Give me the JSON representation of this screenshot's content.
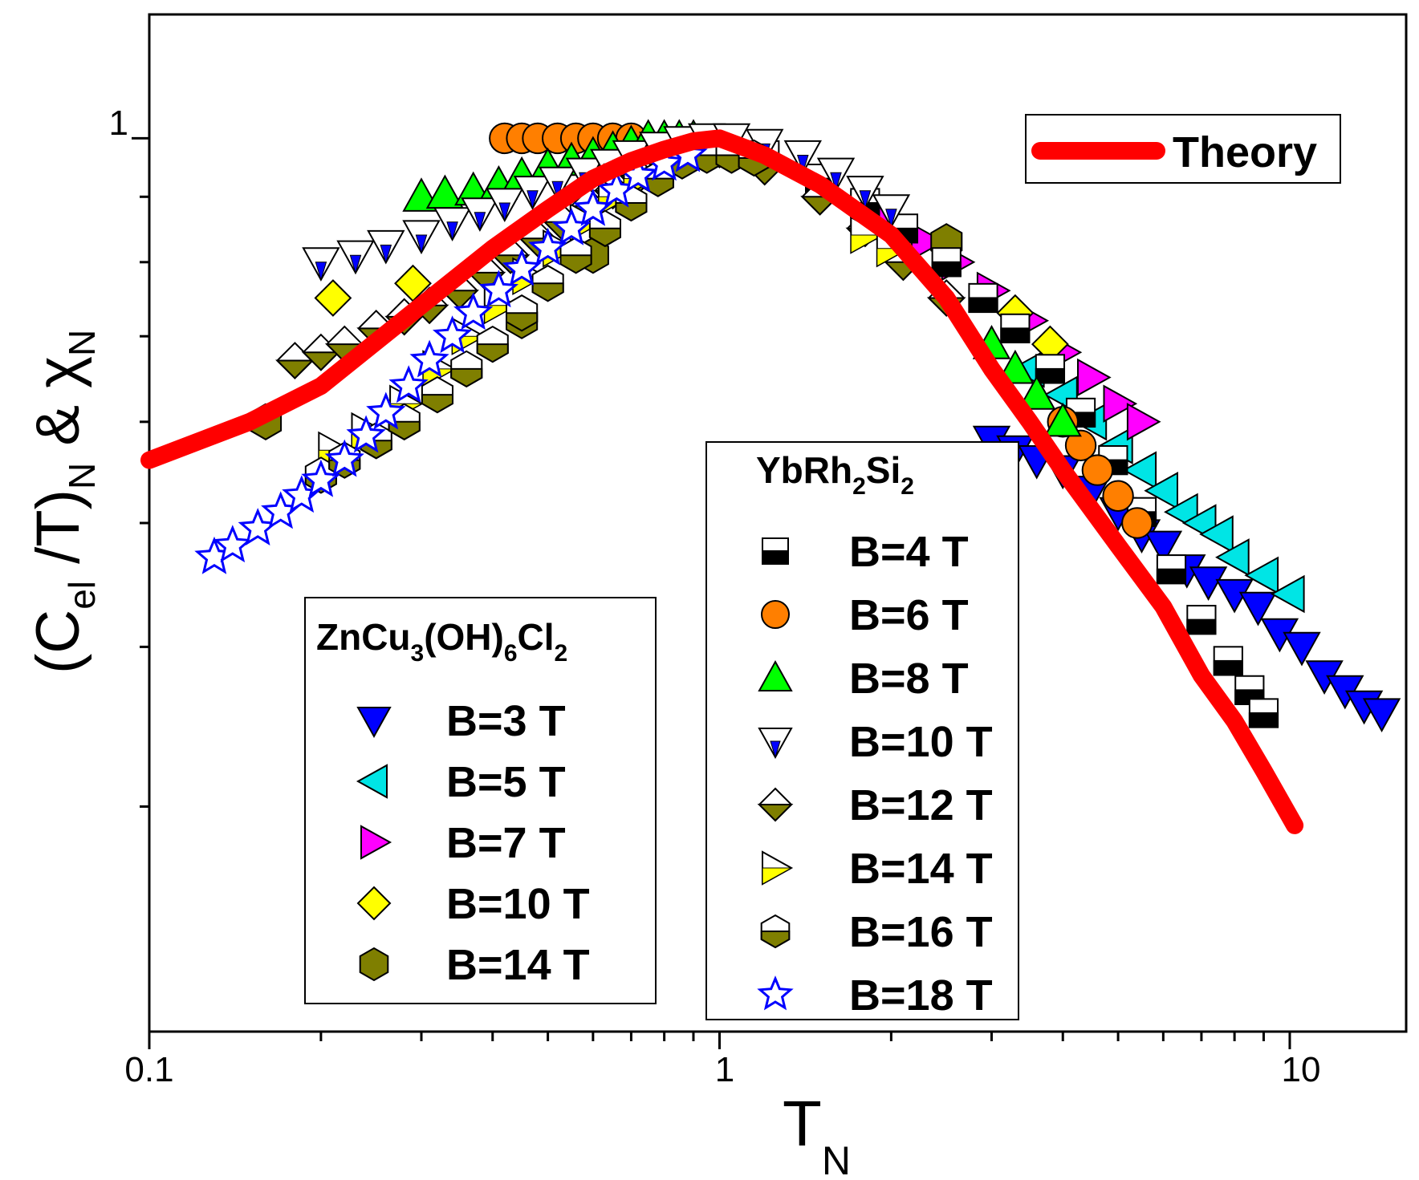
{
  "chart_data": {
    "type": "scatter",
    "xscale": "log",
    "yscale": "log",
    "xlim": [
      0.1,
      16
    ],
    "ylim": [
      0.2,
      1.25
    ],
    "xlabel": {
      "main": "T",
      "sub": "N"
    },
    "ylabel": {
      "open": "(C",
      "sub1": "el",
      "mid": " /T)",
      "sub2": "N",
      "amp": " & χ",
      "sub3": "N"
    },
    "x_ticks": [
      {
        "value": 0.1,
        "label": "0.1"
      },
      {
        "value": 1,
        "label": "1"
      },
      {
        "value": 10,
        "label": "10"
      }
    ],
    "y_ticks_labeled": [
      {
        "value": 1,
        "label": "1"
      }
    ],
    "y_ticks_unlabeled": [
      0.3,
      0.4,
      0.5,
      0.6,
      0.7,
      0.8,
      0.9
    ],
    "theory": {
      "name": "Theory",
      "color": "#ff0000",
      "x": [
        0.1,
        0.15,
        0.2,
        0.3,
        0.4,
        0.5,
        0.6,
        0.7,
        0.8,
        0.9,
        1.0,
        1.2,
        1.5,
        2.0,
        2.5,
        3.0,
        3.5,
        4.0,
        5.0,
        6.0,
        7.0,
        8.0,
        9.0,
        10.2
      ],
      "y": [
        0.56,
        0.6,
        0.64,
        0.74,
        0.82,
        0.88,
        0.93,
        0.96,
        0.98,
        0.995,
        1.0,
        0.97,
        0.92,
        0.84,
        0.75,
        0.66,
        0.6,
        0.55,
        0.48,
        0.43,
        0.38,
        0.35,
        0.32,
        0.29
      ]
    },
    "legend_zn": {
      "title_parts": [
        {
          "text": "ZnCu",
          "sub": false
        },
        {
          "text": "3",
          "sub": true
        },
        {
          "text": "(OH)",
          "sub": false
        },
        {
          "text": "6",
          "sub": true
        },
        {
          "text": "Cl",
          "sub": false
        },
        {
          "text": "2",
          "sub": true
        }
      ]
    },
    "legend_yb": {
      "title_parts": [
        {
          "text": "YbRh",
          "sub": false
        },
        {
          "text": "2",
          "sub": true
        },
        {
          "text": "Si",
          "sub": false
        },
        {
          "text": "2",
          "sub": true
        }
      ]
    },
    "series": [
      {
        "group": "zn",
        "name": "B=3 T",
        "marker": "tri-down",
        "fill": "#0000ff",
        "x": [
          3.0,
          3.3,
          3.6,
          4.0,
          4.5,
          5.0,
          5.5,
          6.0,
          6.6,
          7.2,
          8.0,
          8.8,
          9.6,
          10.5,
          11.5,
          12.5,
          13.5,
          14.5
        ],
        "y": [
          0.58,
          0.57,
          0.56,
          0.55,
          0.53,
          0.51,
          0.49,
          0.48,
          0.46,
          0.45,
          0.44,
          0.43,
          0.41,
          0.4,
          0.38,
          0.37,
          0.36,
          0.355
        ]
      },
      {
        "group": "zn",
        "name": "B=5 T",
        "marker": "tri-left",
        "fill": "#00e5e5",
        "x": [
          3.5,
          4.0,
          4.5,
          5.0,
          5.5,
          6.0,
          6.5,
          7.0,
          7.5,
          8.0,
          9.0,
          10.0
        ],
        "y": [
          0.66,
          0.63,
          0.6,
          0.575,
          0.55,
          0.53,
          0.51,
          0.5,
          0.49,
          0.47,
          0.455,
          0.44
        ]
      },
      {
        "group": "zn",
        "name": "B=7 T",
        "marker": "tri-right",
        "fill": "#ff00ff",
        "x": [
          1.8,
          2.0,
          2.3,
          2.6,
          3.0,
          3.5,
          4.0,
          4.5,
          5.0,
          5.5
        ],
        "y": [
          0.88,
          0.86,
          0.83,
          0.8,
          0.76,
          0.72,
          0.68,
          0.65,
          0.62,
          0.6
        ]
      },
      {
        "group": "zn",
        "name": "B=10 T",
        "marker": "diamond",
        "fill": "#ffff00",
        "x": [
          0.21,
          0.29,
          3.3,
          3.8
        ],
        "y": [
          0.75,
          0.77,
          0.73,
          0.69
        ]
      },
      {
        "group": "zn",
        "name": "B=14 T",
        "marker": "hexagon",
        "fill": "#7f7f00",
        "x": [
          0.16,
          0.45,
          0.6,
          2.5
        ],
        "y": [
          0.6,
          0.72,
          0.81,
          0.83
        ]
      },
      {
        "group": "yb",
        "name": "B=4 T",
        "marker": "square-half",
        "fill": "#000000",
        "x": [
          1.2,
          1.5,
          1.8,
          2.1,
          2.5,
          2.9,
          3.3,
          3.8,
          4.3,
          4.9,
          5.5,
          6.2,
          7.0,
          7.8,
          8.5,
          9.0
        ],
        "y": [
          0.97,
          0.93,
          0.89,
          0.85,
          0.8,
          0.75,
          0.71,
          0.66,
          0.61,
          0.56,
          0.51,
          0.46,
          0.42,
          0.39,
          0.37,
          0.355
        ]
      },
      {
        "group": "yb",
        "name": "B=6 T",
        "marker": "circle",
        "fill": "#ff7f00",
        "x": [
          0.42,
          0.45,
          0.48,
          0.52,
          0.56,
          0.6,
          0.65,
          0.7,
          4.0,
          4.3,
          4.6,
          5.0,
          5.4
        ],
        "y": [
          1.0,
          1.0,
          1.0,
          1.0,
          1.0,
          1.0,
          1.0,
          1.0,
          0.6,
          0.575,
          0.55,
          0.525,
          0.5
        ]
      },
      {
        "group": "yb",
        "name": "B=8 T",
        "marker": "tri-up",
        "fill": "#00ff00",
        "x": [
          0.3,
          0.33,
          0.37,
          0.41,
          0.45,
          0.5,
          0.55,
          0.6,
          0.65,
          0.7,
          0.75,
          0.8,
          0.85,
          0.9,
          3.0,
          3.3,
          3.6,
          4.0
        ],
        "y": [
          0.9,
          0.905,
          0.91,
          0.92,
          0.935,
          0.95,
          0.96,
          0.97,
          0.98,
          0.99,
          1.0,
          1.0,
          1.0,
          1.0,
          0.69,
          0.66,
          0.63,
          0.6
        ]
      },
      {
        "group": "yb",
        "name": "B=10 T",
        "marker": "tri-down-half",
        "fill": "#0000ff",
        "x": [
          0.2,
          0.23,
          0.26,
          0.3,
          0.34,
          0.38,
          0.42,
          0.47,
          0.52,
          0.58,
          0.64,
          0.7,
          0.78,
          0.86,
          0.95,
          1.05,
          1.2,
          1.4,
          1.6,
          1.8,
          2.0
        ],
        "y": [
          0.8,
          0.81,
          0.825,
          0.84,
          0.86,
          0.875,
          0.89,
          0.91,
          0.925,
          0.94,
          0.955,
          0.97,
          0.985,
          0.995,
          1.0,
          1.0,
          0.99,
          0.97,
          0.94,
          0.91,
          0.88
        ]
      },
      {
        "group": "yb",
        "name": "B=12 T",
        "marker": "diamond-half",
        "fill": "#7f7f00",
        "x": [
          0.18,
          0.2,
          0.22,
          0.25,
          0.28,
          0.31,
          0.35,
          0.39,
          0.43,
          0.48,
          0.53,
          0.59,
          0.65,
          0.72,
          0.8,
          0.9,
          1.0,
          1.2,
          1.5,
          1.8,
          2.1,
          2.5
        ],
        "y": [
          0.67,
          0.68,
          0.69,
          0.71,
          0.725,
          0.74,
          0.76,
          0.785,
          0.81,
          0.835,
          0.86,
          0.885,
          0.91,
          0.935,
          0.96,
          0.975,
          0.98,
          0.95,
          0.9,
          0.85,
          0.8,
          0.75
        ]
      },
      {
        "group": "yb",
        "name": "B=14 T",
        "marker": "tri-right-half",
        "fill": "#ffff00",
        "x": [
          0.21,
          0.24,
          0.28,
          0.32,
          0.36,
          0.41,
          0.46,
          0.52,
          0.58,
          0.65,
          0.72,
          1.8,
          2.0
        ],
        "y": [
          0.57,
          0.59,
          0.62,
          0.66,
          0.7,
          0.74,
          0.78,
          0.82,
          0.86,
          0.9,
          0.93,
          0.84,
          0.82
        ]
      },
      {
        "group": "yb",
        "name": "B=16 T",
        "marker": "hexagon-half",
        "fill": "#7f7f00",
        "x": [
          0.2,
          0.22,
          0.25,
          0.28,
          0.32,
          0.36,
          0.4,
          0.45,
          0.5,
          0.56,
          0.63,
          0.7,
          0.78,
          0.86,
          0.95,
          1.05,
          1.15
        ],
        "y": [
          0.545,
          0.56,
          0.58,
          0.6,
          0.63,
          0.66,
          0.69,
          0.73,
          0.77,
          0.81,
          0.85,
          0.89,
          0.93,
          0.96,
          0.97,
          0.97,
          0.965
        ]
      },
      {
        "group": "yb",
        "name": "B=18 T",
        "marker": "star",
        "fill": "#0000ff",
        "x": [
          0.13,
          0.14,
          0.155,
          0.17,
          0.185,
          0.2,
          0.22,
          0.24,
          0.26,
          0.285,
          0.31,
          0.34,
          0.37,
          0.41,
          0.45,
          0.5,
          0.55,
          0.6,
          0.66,
          0.72,
          0.8,
          0.88
        ],
        "y": [
          0.47,
          0.48,
          0.495,
          0.51,
          0.525,
          0.54,
          0.56,
          0.585,
          0.61,
          0.64,
          0.67,
          0.7,
          0.73,
          0.76,
          0.79,
          0.82,
          0.85,
          0.88,
          0.91,
          0.935,
          0.955,
          0.97
        ]
      }
    ]
  }
}
